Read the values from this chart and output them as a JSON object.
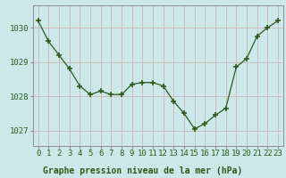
{
  "x": [
    0,
    1,
    2,
    3,
    4,
    5,
    6,
    7,
    8,
    9,
    10,
    11,
    12,
    13,
    14,
    15,
    16,
    17,
    18,
    19,
    20,
    21,
    22,
    23
  ],
  "y": [
    1030.2,
    1029.6,
    1029.2,
    1028.8,
    1028.3,
    1028.05,
    1028.15,
    1028.05,
    1028.05,
    1028.35,
    1028.4,
    1028.4,
    1028.3,
    1027.85,
    1027.5,
    1027.05,
    1027.2,
    1027.45,
    1027.65,
    1028.85,
    1029.1,
    1029.75,
    1030.0,
    1030.2
  ],
  "line_color": "#2d5a1b",
  "marker": "+",
  "marker_size": 5,
  "marker_linewidth": 1.2,
  "bg_color": "#cce8e8",
  "plot_bg_color": "#cce8e8",
  "grid_color": "#c8b8b8",
  "border_color": "#909090",
  "ylabel_ticks": [
    1027,
    1028,
    1029,
    1030
  ],
  "ylim": [
    1026.55,
    1030.65
  ],
  "xlim": [
    -0.5,
    23.5
  ],
  "xlabel": "Graphe pression niveau de la mer (hPa)",
  "xlabel_fontsize": 7,
  "tick_fontsize": 6.5,
  "tick_color": "#2d5a1b",
  "label_bg": "#cce8e8"
}
